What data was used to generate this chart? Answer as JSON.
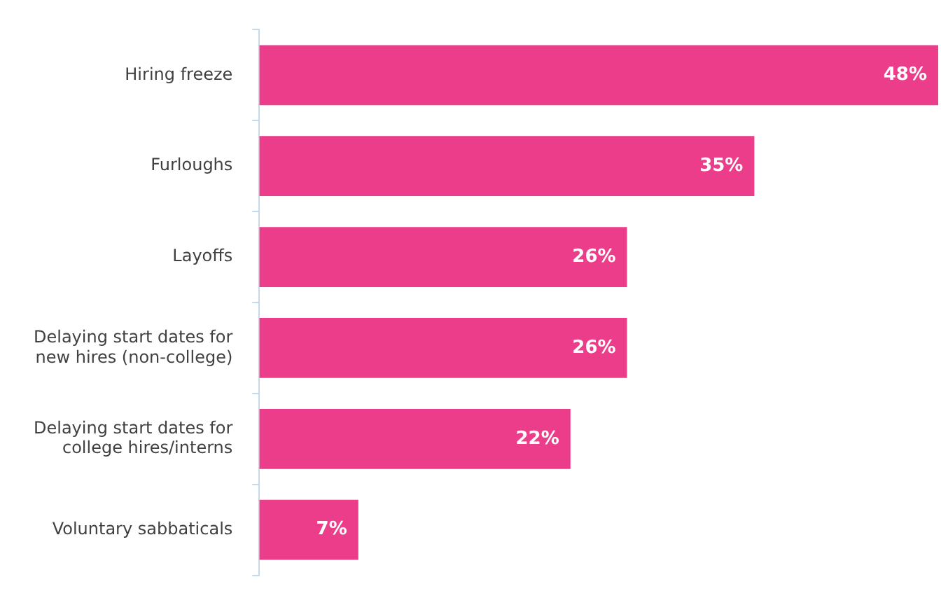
{
  "chart_data": {
    "type": "bar",
    "orientation": "horizontal",
    "categories": [
      "Hiring freeze",
      "Furloughs",
      "Layoffs",
      "Delaying start dates for new hires (non-college)",
      "Delaying start dates for college hires/interns",
      "Voluntary sabbaticals"
    ],
    "values": [
      48,
      35,
      26,
      26,
      22,
      7
    ],
    "value_labels": [
      "48%",
      "35%",
      "26%",
      "26%",
      "22%",
      "7%"
    ],
    "color": "#ec3d8a",
    "xlim": [
      0,
      48
    ],
    "tick_labels": "y",
    "grid": false,
    "legend": false
  }
}
